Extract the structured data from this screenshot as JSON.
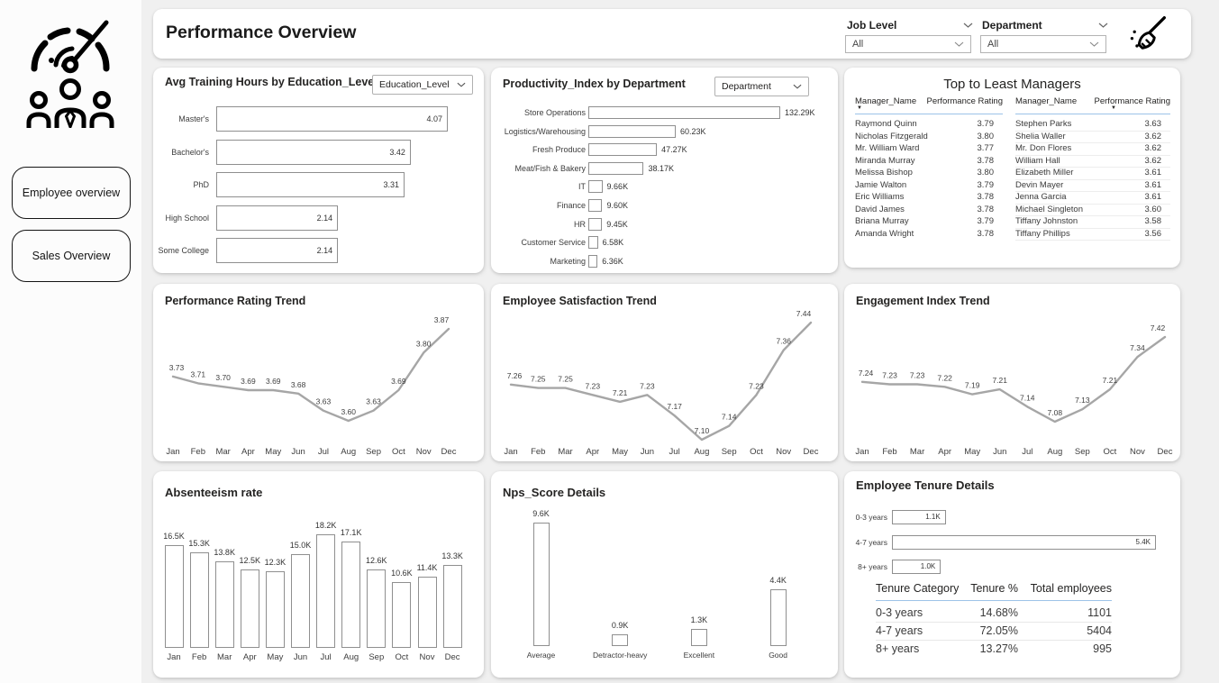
{
  "page": {
    "background": "#f0f0f0",
    "card_bg": "#ffffff",
    "line_color": "#a6a6a6",
    "bar_border": "#8f8f8f",
    "header_underline": "#9dc3e8"
  },
  "sidebar": {
    "icons": [
      {
        "name": "gauge-icon"
      },
      {
        "name": "team-icon"
      }
    ],
    "buttons": [
      {
        "label": "Employee overview"
      },
      {
        "label": "Sales Overview"
      }
    ]
  },
  "header": {
    "title": "Performance Overview",
    "filters": [
      {
        "label": "Job Level",
        "value": "All"
      },
      {
        "label": "Department",
        "value": "All"
      }
    ],
    "clear_icon": "broom-icon"
  },
  "cards": {
    "training": {
      "title": "Avg Training Hours by Education_Level",
      "dropdown": "Education_Level",
      "chart_data": {
        "type": "bar",
        "orientation": "horizontal",
        "categories": [
          "Master's",
          "Bachelor's",
          "PhD",
          "High School",
          "Some College"
        ],
        "values": [
          4.07,
          3.42,
          3.31,
          2.14,
          2.14
        ],
        "value_labels": [
          "4.07",
          "3.42",
          "3.31",
          "2.14",
          "2.14"
        ],
        "max": 4.07,
        "value_position": "inside"
      }
    },
    "productivity": {
      "title": "Productivity_Index by Department",
      "dropdown": "Department",
      "chart_data": {
        "type": "bar",
        "orientation": "horizontal",
        "categories": [
          "Store Operations",
          "Logistics/Warehousing",
          "Fresh Produce",
          "Meat/Fish & Bakery",
          "IT",
          "Finance",
          "HR",
          "Customer Service",
          "Marketing"
        ],
        "values": [
          132.29,
          60.23,
          47.27,
          38.17,
          9.66,
          9.6,
          9.45,
          6.58,
          6.36
        ],
        "value_labels": [
          "132.29K",
          "60.23K",
          "47.27K",
          "38.17K",
          "9.66K",
          "9.60K",
          "9.45K",
          "6.58K",
          "6.36K"
        ],
        "max": 132.29,
        "value_position": "outside"
      }
    },
    "managers": {
      "title": "Top to Least Managers",
      "columns": [
        "Manager_Name",
        "Performance Rating"
      ],
      "left_rows": [
        [
          "Raymond Quinn",
          "3.79"
        ],
        [
          "Nicholas Fitzgerald",
          "3.80"
        ],
        [
          "Mr. William Ward",
          "3.77"
        ],
        [
          "Miranda Murray",
          "3.78"
        ],
        [
          "Melissa Bishop",
          "3.80"
        ],
        [
          "Jamie Walton",
          "3.79"
        ],
        [
          "Eric Williams",
          "3.78"
        ],
        [
          "David James",
          "3.78"
        ],
        [
          "Briana Murray",
          "3.79"
        ],
        [
          "Amanda Wright",
          "3.78"
        ]
      ],
      "right_rows": [
        [
          "Stephen Parks",
          "3.63"
        ],
        [
          "Shelia Waller",
          "3.62"
        ],
        [
          "Mr. Don Flores",
          "3.62"
        ],
        [
          "William Hall",
          "3.62"
        ],
        [
          "Elizabeth Miller",
          "3.61"
        ],
        [
          "Devin Mayer",
          "3.61"
        ],
        [
          "Jenna Garcia",
          "3.61"
        ],
        [
          "Michael Singleton",
          "3.60"
        ],
        [
          "Tiffany Johnston",
          "3.58"
        ],
        [
          "Tiffany Phillips",
          "3.56"
        ]
      ]
    },
    "perf_trend": {
      "title": "Performance Rating Trend",
      "chart_data": {
        "type": "line",
        "x": [
          "Jan",
          "Feb",
          "Mar",
          "Apr",
          "May",
          "Jun",
          "Jul",
          "Aug",
          "Sep",
          "Oct",
          "Nov",
          "Dec"
        ],
        "values": [
          3.73,
          3.71,
          3.7,
          3.69,
          3.69,
          3.68,
          3.63,
          3.6,
          3.63,
          3.69,
          3.8,
          3.87
        ],
        "labels": [
          "3.73",
          "3.71",
          "3.70",
          "3.69",
          "3.69",
          "3.68",
          "3.63",
          "3.60",
          "3.63",
          "3.69",
          "3.80",
          "3.87"
        ],
        "ylim": [
          3.6,
          3.87
        ]
      }
    },
    "satisfaction_trend": {
      "title": "Employee Satisfaction Trend",
      "chart_data": {
        "type": "line",
        "x": [
          "Jan",
          "Feb",
          "Mar",
          "Apr",
          "May",
          "Jun",
          "Jul",
          "Aug",
          "Sep",
          "Oct",
          "Nov",
          "Dec"
        ],
        "values": [
          7.26,
          7.25,
          7.25,
          7.23,
          7.21,
          7.23,
          7.17,
          7.1,
          7.14,
          7.23,
          7.36,
          7.44
        ],
        "labels": [
          "7.26",
          "7.25",
          "7.25",
          "7.23",
          "7.21",
          "7.23",
          "7.17",
          "7.10",
          "7.14",
          "7.23",
          "7.36",
          "7.44"
        ],
        "ylim": [
          7.1,
          7.44
        ]
      }
    },
    "engagement_trend": {
      "title": "Engagement Index Trend",
      "chart_data": {
        "type": "line",
        "x": [
          "Jan",
          "Feb",
          "Mar",
          "Apr",
          "May",
          "Jun",
          "Jul",
          "Aug",
          "Sep",
          "Oct",
          "Nov",
          "Dec"
        ],
        "values": [
          7.24,
          7.23,
          7.23,
          7.22,
          7.19,
          7.21,
          7.14,
          7.08,
          7.13,
          7.21,
          7.34,
          7.42
        ],
        "labels": [
          "7.24",
          "7.23",
          "7.23",
          "7.22",
          "7.19",
          "7.21",
          "7.14",
          "7.08",
          "7.13",
          "7.21",
          "7.34",
          "7.42"
        ],
        "ylim": [
          7.08,
          7.42
        ]
      }
    },
    "absenteeism": {
      "title": "Absenteeism rate",
      "chart_data": {
        "type": "bar",
        "orientation": "vertical",
        "categories": [
          "Jan",
          "Feb",
          "Mar",
          "Apr",
          "May",
          "Jun",
          "Jul",
          "Aug",
          "Sep",
          "Oct",
          "Nov",
          "Dec"
        ],
        "values": [
          16.5,
          15.3,
          13.8,
          12.5,
          12.3,
          15.0,
          18.2,
          17.1,
          12.6,
          10.6,
          11.4,
          13.3
        ],
        "value_labels": [
          "16.5K",
          "15.3K",
          "13.8K",
          "12.5K",
          "12.3K",
          "15.0K",
          "18.2K",
          "17.1K",
          "12.6K",
          "10.6K",
          "11.4K",
          "13.3K"
        ],
        "max": 18.2
      }
    },
    "nps": {
      "title": "Nps_Score Details",
      "chart_data": {
        "type": "bar",
        "orientation": "vertical",
        "categories": [
          "Average",
          "Detractor-heavy",
          "Excellent",
          "Good"
        ],
        "values": [
          9.6,
          0.9,
          1.3,
          4.4
        ],
        "value_labels": [
          "9.6K",
          "0.9K",
          "1.3K",
          "4.4K"
        ],
        "max": 9.6
      }
    },
    "tenure": {
      "title": "Employee Tenure Details",
      "chart_data": {
        "type": "bar",
        "orientation": "horizontal",
        "categories": [
          "0-3 years",
          "4-7 years",
          "8+ years"
        ],
        "values": [
          1.1,
          5.4,
          1.0
        ],
        "value_labels": [
          "1.1K",
          "5.4K",
          "1.0K"
        ],
        "max": 5.4,
        "value_position": "inside"
      },
      "table": {
        "columns": [
          "Tenure Category",
          "Tenure %",
          "Total employees"
        ],
        "rows": [
          [
            "0-3 years",
            "14.68%",
            "1101"
          ],
          [
            "4-7 years",
            "72.05%",
            "5404"
          ],
          [
            "8+ years",
            "13.27%",
            "995"
          ]
        ]
      }
    }
  }
}
